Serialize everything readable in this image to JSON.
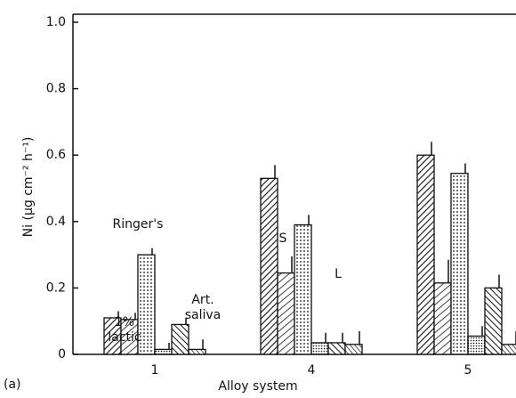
{
  "chart_data": {
    "type": "bar",
    "xlabel": "Alloy system",
    "ylabel": "Ni (μg cm⁻² h⁻¹)",
    "panel_label": "(a)",
    "categories": [
      "1",
      "4",
      "5"
    ],
    "series": [
      {
        "pattern": "hatch-a",
        "values": [
          0.11,
          0.53,
          0.6
        ],
        "errors": [
          0.02,
          0.04,
          0.04
        ]
      },
      {
        "pattern": "hatch-b",
        "values": [
          0.105,
          0.245,
          0.215
        ],
        "errors": [
          0.02,
          0.05,
          0.07
        ]
      },
      {
        "pattern": "dots-a",
        "values": [
          0.3,
          0.39,
          0.545
        ],
        "errors": [
          0.02,
          0.03,
          0.03
        ]
      },
      {
        "pattern": "dots-b",
        "values": [
          0.015,
          0.035,
          0.055
        ],
        "errors": [
          0.02,
          0.03,
          0.03
        ]
      },
      {
        "pattern": "hatch-c",
        "values": [
          0.09,
          0.035,
          0.2
        ],
        "errors": [
          0.02,
          0.03,
          0.04
        ]
      },
      {
        "pattern": "hatch-d",
        "values": [
          0.015,
          0.03,
          0.03
        ],
        "errors": [
          0.03,
          0.04,
          0.04
        ]
      }
    ],
    "annotations": [
      "1%",
      "lactic",
      "Ringer's",
      "Art.",
      "saliva",
      "S",
      "L"
    ],
    "ylim": [
      0,
      1
    ],
    "yticks": [
      0,
      0.2,
      0.4,
      0.6,
      0.8,
      {
        "value": 1,
        "label": "1.0"
      }
    ]
  }
}
